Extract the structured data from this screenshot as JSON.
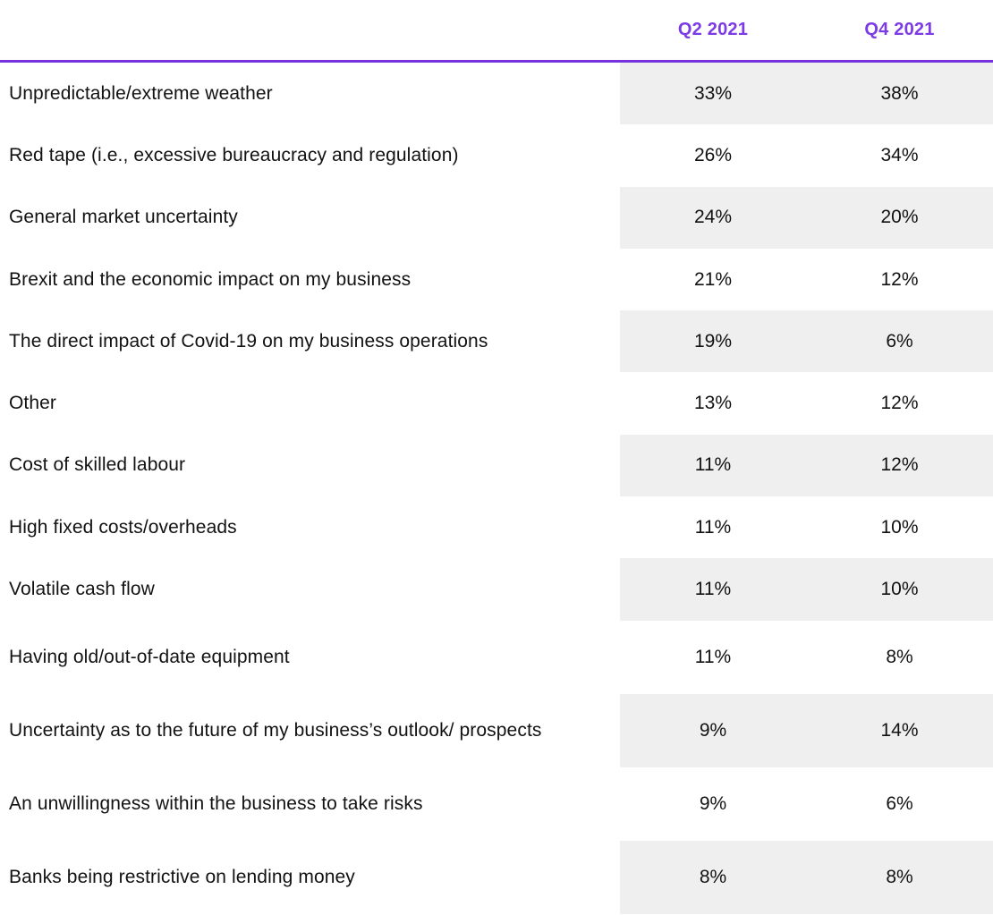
{
  "colors": {
    "accent": "#7c3be4",
    "divider_line": "#7433dc",
    "row_stripe": "#efefef",
    "body_text": "#121212"
  },
  "header": {
    "col_q2": "Q2 2021",
    "col_q4": "Q4 2021"
  },
  "chart_data": {
    "type": "table",
    "title": "",
    "columns": [
      "",
      "Q2 2021",
      "Q4 2021"
    ],
    "legend_position": "top",
    "grid": false,
    "stripe_note": "even rows shaded light gray on value columns only",
    "rows": [
      {
        "label": "Unpredictable/extreme weather",
        "q2": "33%",
        "q4": "38%"
      },
      {
        "label": "Red tape (i.e., excessive bureaucracy and regulation)",
        "q2": "26%",
        "q4": "34%"
      },
      {
        "label": "General market uncertainty",
        "q2": "24%",
        "q4": "20%"
      },
      {
        "label": "Brexit and the economic impact on my business",
        "q2": "21%",
        "q4": "12%"
      },
      {
        "label": "The direct impact of Covid-19 on my business operations",
        "q2": "19%",
        "q4": "6%"
      },
      {
        "label": "Other",
        "q2": "13%",
        "q4": "12%"
      },
      {
        "label": "Cost of skilled labour",
        "q2": "11%",
        "q4": "12%"
      },
      {
        "label": "High fixed costs/overheads",
        "q2": "11%",
        "q4": "10%"
      },
      {
        "label": "Volatile cash flow",
        "q2": "11%",
        "q4": "10%"
      },
      {
        "label": "Having old/out-of-date equipment",
        "q2": "11%",
        "q4": "8%"
      },
      {
        "label": "Uncertainty as to the future of my business’s outlook/ prospects",
        "q2": "9%",
        "q4": "14%"
      },
      {
        "label": "An unwillingness within the business to take risks",
        "q2": "9%",
        "q4": "6%"
      },
      {
        "label": "Banks being restrictive on lending money",
        "q2": "8%",
        "q4": "8%"
      }
    ]
  }
}
